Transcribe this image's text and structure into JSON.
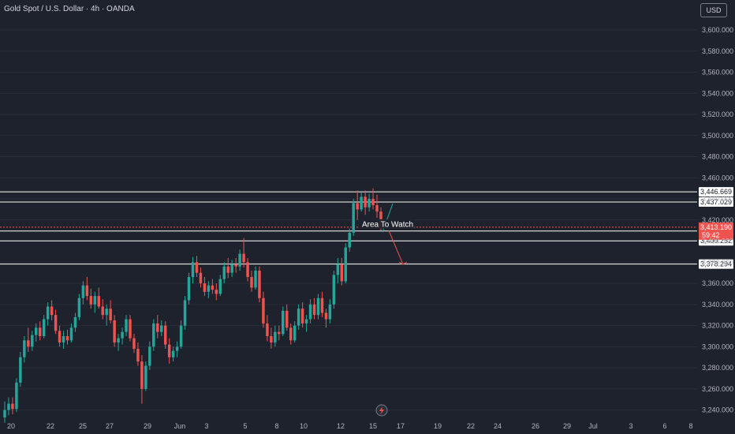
{
  "header": {
    "symbol_title": "Gold Spot / U.S. Dollar · 4h · OANDA",
    "currency": "USD"
  },
  "colors": {
    "background": "#1e222d",
    "up": "#26a69a",
    "down": "#ef5350",
    "text": "#b2b5be",
    "line": "#ffffff"
  },
  "chart_data": {
    "type": "candlestick",
    "title": "Gold Spot / U.S. Dollar · 4h · OANDA",
    "xlabel": "",
    "ylabel": "",
    "ylim": [
      3225,
      3615
    ],
    "y_ticks": [
      "3,240.000",
      "3,260.000",
      "3,280.000",
      "3,300.000",
      "3,320.000",
      "3,340.000",
      "3,360.000",
      "3,380.000",
      "3,400.000",
      "3,420.000",
      "3,440.000",
      "3,460.000",
      "3,480.000",
      "3,500.000",
      "3,520.000",
      "3,540.000",
      "3,560.000",
      "3,580.000",
      "3,600.000"
    ],
    "y_tick_values": [
      3240,
      3260,
      3280,
      3300,
      3320,
      3340,
      3360,
      3380,
      3400,
      3420,
      3440,
      3460,
      3480,
      3500,
      3520,
      3540,
      3560,
      3580,
      3600
    ],
    "x_ticks": [
      "20",
      "22",
      "25",
      "27",
      "29",
      "Jun",
      "3",
      "5",
      "8",
      "10",
      "12",
      "15",
      "17",
      "19",
      "22",
      "24",
      "26",
      "29",
      "Jul",
      "3",
      "6",
      "8"
    ],
    "horizontal_levels": [
      {
        "value": 3446.669,
        "label": "3,446.669"
      },
      {
        "value": 3437.029,
        "label": "3,437.029"
      },
      {
        "value": 3409.584,
        "label": "3,409.584"
      },
      {
        "value": 3400.252,
        "label": "3,400.252"
      },
      {
        "value": 3378.294,
        "label": "3,378.294"
      }
    ],
    "current_price": {
      "label": "3,413.190",
      "countdown": "59:42",
      "value": 3413.19
    },
    "annotation": "Area To Watch",
    "candles": [
      {
        "o": 3233,
        "h": 3248,
        "l": 3228,
        "c": 3240
      },
      {
        "o": 3240,
        "h": 3252,
        "l": 3235,
        "c": 3246
      },
      {
        "o": 3246,
        "h": 3252,
        "l": 3236,
        "c": 3241
      },
      {
        "o": 3241,
        "h": 3270,
        "l": 3238,
        "c": 3266
      },
      {
        "o": 3266,
        "h": 3295,
        "l": 3262,
        "c": 3290
      },
      {
        "o": 3290,
        "h": 3310,
        "l": 3285,
        "c": 3306
      },
      {
        "o": 3306,
        "h": 3318,
        "l": 3295,
        "c": 3300
      },
      {
        "o": 3300,
        "h": 3315,
        "l": 3296,
        "c": 3311
      },
      {
        "o": 3311,
        "h": 3322,
        "l": 3305,
        "c": 3318
      },
      {
        "o": 3318,
        "h": 3324,
        "l": 3306,
        "c": 3310
      },
      {
        "o": 3310,
        "h": 3330,
        "l": 3308,
        "c": 3326
      },
      {
        "o": 3326,
        "h": 3342,
        "l": 3320,
        "c": 3338
      },
      {
        "o": 3338,
        "h": 3344,
        "l": 3325,
        "c": 3330
      },
      {
        "o": 3330,
        "h": 3335,
        "l": 3312,
        "c": 3315
      },
      {
        "o": 3315,
        "h": 3320,
        "l": 3300,
        "c": 3304
      },
      {
        "o": 3304,
        "h": 3315,
        "l": 3298,
        "c": 3310
      },
      {
        "o": 3310,
        "h": 3316,
        "l": 3302,
        "c": 3306
      },
      {
        "o": 3306,
        "h": 3322,
        "l": 3304,
        "c": 3318
      },
      {
        "o": 3318,
        "h": 3332,
        "l": 3314,
        "c": 3328
      },
      {
        "o": 3328,
        "h": 3350,
        "l": 3325,
        "c": 3346
      },
      {
        "o": 3346,
        "h": 3362,
        "l": 3340,
        "c": 3358
      },
      {
        "o": 3358,
        "h": 3366,
        "l": 3344,
        "c": 3348
      },
      {
        "o": 3348,
        "h": 3355,
        "l": 3336,
        "c": 3340
      },
      {
        "o": 3340,
        "h": 3352,
        "l": 3332,
        "c": 3348
      },
      {
        "o": 3348,
        "h": 3356,
        "l": 3336,
        "c": 3338
      },
      {
        "o": 3338,
        "h": 3345,
        "l": 3326,
        "c": 3330
      },
      {
        "o": 3330,
        "h": 3340,
        "l": 3320,
        "c": 3336
      },
      {
        "o": 3336,
        "h": 3344,
        "l": 3322,
        "c": 3325
      },
      {
        "o": 3325,
        "h": 3330,
        "l": 3300,
        "c": 3304
      },
      {
        "o": 3304,
        "h": 3312,
        "l": 3296,
        "c": 3308
      },
      {
        "o": 3308,
        "h": 3318,
        "l": 3302,
        "c": 3314
      },
      {
        "o": 3314,
        "h": 3330,
        "l": 3310,
        "c": 3326
      },
      {
        "o": 3326,
        "h": 3330,
        "l": 3305,
        "c": 3308
      },
      {
        "o": 3308,
        "h": 3312,
        "l": 3294,
        "c": 3298
      },
      {
        "o": 3298,
        "h": 3304,
        "l": 3282,
        "c": 3286
      },
      {
        "o": 3286,
        "h": 3292,
        "l": 3246,
        "c": 3260
      },
      {
        "o": 3260,
        "h": 3286,
        "l": 3258,
        "c": 3282
      },
      {
        "o": 3282,
        "h": 3305,
        "l": 3278,
        "c": 3300
      },
      {
        "o": 3300,
        "h": 3326,
        "l": 3296,
        "c": 3322
      },
      {
        "o": 3322,
        "h": 3330,
        "l": 3308,
        "c": 3314
      },
      {
        "o": 3314,
        "h": 3325,
        "l": 3310,
        "c": 3320
      },
      {
        "o": 3320,
        "h": 3324,
        "l": 3298,
        "c": 3302
      },
      {
        "o": 3302,
        "h": 3308,
        "l": 3284,
        "c": 3290
      },
      {
        "o": 3290,
        "h": 3300,
        "l": 3286,
        "c": 3296
      },
      {
        "o": 3296,
        "h": 3305,
        "l": 3290,
        "c": 3300
      },
      {
        "o": 3300,
        "h": 3325,
        "l": 3298,
        "c": 3320
      },
      {
        "o": 3320,
        "h": 3348,
        "l": 3316,
        "c": 3344
      },
      {
        "o": 3344,
        "h": 3370,
        "l": 3340,
        "c": 3366
      },
      {
        "o": 3366,
        "h": 3385,
        "l": 3360,
        "c": 3380
      },
      {
        "o": 3380,
        "h": 3386,
        "l": 3366,
        "c": 3370
      },
      {
        "o": 3370,
        "h": 3375,
        "l": 3356,
        "c": 3360
      },
      {
        "o": 3360,
        "h": 3366,
        "l": 3348,
        "c": 3352
      },
      {
        "o": 3352,
        "h": 3362,
        "l": 3346,
        "c": 3358
      },
      {
        "o": 3358,
        "h": 3364,
        "l": 3350,
        "c": 3354
      },
      {
        "o": 3354,
        "h": 3360,
        "l": 3344,
        "c": 3350
      },
      {
        "o": 3350,
        "h": 3368,
        "l": 3348,
        "c": 3364
      },
      {
        "o": 3364,
        "h": 3380,
        "l": 3360,
        "c": 3376
      },
      {
        "o": 3376,
        "h": 3384,
        "l": 3365,
        "c": 3370
      },
      {
        "o": 3370,
        "h": 3382,
        "l": 3366,
        "c": 3378
      },
      {
        "o": 3378,
        "h": 3384,
        "l": 3370,
        "c": 3376
      },
      {
        "o": 3376,
        "h": 3392,
        "l": 3372,
        "c": 3388
      },
      {
        "o": 3388,
        "h": 3403,
        "l": 3375,
        "c": 3380
      },
      {
        "o": 3380,
        "h": 3384,
        "l": 3362,
        "c": 3366
      },
      {
        "o": 3366,
        "h": 3372,
        "l": 3352,
        "c": 3356
      },
      {
        "o": 3356,
        "h": 3376,
        "l": 3354,
        "c": 3372
      },
      {
        "o": 3372,
        "h": 3376,
        "l": 3342,
        "c": 3346
      },
      {
        "o": 3346,
        "h": 3352,
        "l": 3318,
        "c": 3322
      },
      {
        "o": 3322,
        "h": 3330,
        "l": 3305,
        "c": 3310
      },
      {
        "o": 3310,
        "h": 3318,
        "l": 3298,
        "c": 3304
      },
      {
        "o": 3304,
        "h": 3320,
        "l": 3300,
        "c": 3314
      },
      {
        "o": 3314,
        "h": 3320,
        "l": 3306,
        "c": 3312
      },
      {
        "o": 3312,
        "h": 3338,
        "l": 3310,
        "c": 3334
      },
      {
        "o": 3334,
        "h": 3340,
        "l": 3315,
        "c": 3318
      },
      {
        "o": 3318,
        "h": 3322,
        "l": 3302,
        "c": 3306
      },
      {
        "o": 3306,
        "h": 3324,
        "l": 3304,
        "c": 3320
      },
      {
        "o": 3320,
        "h": 3340,
        "l": 3316,
        "c": 3336
      },
      {
        "o": 3336,
        "h": 3342,
        "l": 3318,
        "c": 3322
      },
      {
        "o": 3322,
        "h": 3330,
        "l": 3314,
        "c": 3326
      },
      {
        "o": 3326,
        "h": 3345,
        "l": 3322,
        "c": 3340
      },
      {
        "o": 3340,
        "h": 3346,
        "l": 3326,
        "c": 3330
      },
      {
        "o": 3330,
        "h": 3350,
        "l": 3326,
        "c": 3346
      },
      {
        "o": 3346,
        "h": 3352,
        "l": 3328,
        "c": 3332
      },
      {
        "o": 3332,
        "h": 3336,
        "l": 3318,
        "c": 3326
      },
      {
        "o": 3326,
        "h": 3345,
        "l": 3322,
        "c": 3340
      },
      {
        "o": 3340,
        "h": 3372,
        "l": 3336,
        "c": 3368
      },
      {
        "o": 3368,
        "h": 3384,
        "l": 3360,
        "c": 3378
      },
      {
        "o": 3378,
        "h": 3384,
        "l": 3358,
        "c": 3362
      },
      {
        "o": 3362,
        "h": 3398,
        "l": 3360,
        "c": 3394
      },
      {
        "o": 3394,
        "h": 3412,
        "l": 3390,
        "c": 3408
      },
      {
        "o": 3408,
        "h": 3440,
        "l": 3405,
        "c": 3436
      },
      {
        "o": 3436,
        "h": 3448,
        "l": 3420,
        "c": 3430
      },
      {
        "o": 3430,
        "h": 3446,
        "l": 3428,
        "c": 3442
      },
      {
        "o": 3442,
        "h": 3448,
        "l": 3425,
        "c": 3432
      },
      {
        "o": 3432,
        "h": 3445,
        "l": 3428,
        "c": 3440
      },
      {
        "o": 3440,
        "h": 3450,
        "l": 3430,
        "c": 3434
      },
      {
        "o": 3434,
        "h": 3444,
        "l": 3422,
        "c": 3428
      },
      {
        "o": 3428,
        "h": 3432,
        "l": 3410,
        "c": 3413
      }
    ],
    "projection": {
      "up": {
        "from": 3413,
        "to": 3440
      },
      "down": {
        "from": 3413,
        "to": 3378
      }
    }
  }
}
